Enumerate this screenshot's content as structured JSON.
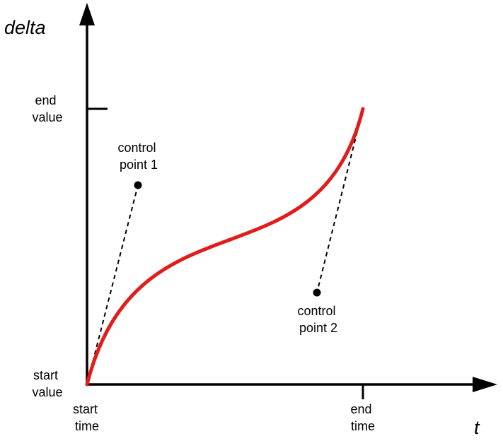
{
  "axes": {
    "y_title": "delta",
    "x_title": "t"
  },
  "y_ticks": {
    "end": [
      "end",
      "value"
    ],
    "start": [
      "start",
      "value"
    ]
  },
  "x_ticks": {
    "start": [
      "start",
      "time"
    ],
    "end": [
      "end",
      "time"
    ]
  },
  "control_points": {
    "cp1": [
      "control",
      "point 1"
    ],
    "cp2": [
      "control",
      "point 2"
    ]
  },
  "colors": {
    "curve": "#e21b1b",
    "axes": "#000000"
  },
  "icons": {
    "y_arrow": "arrow-up-icon",
    "x_arrow": "arrow-right-icon"
  }
}
